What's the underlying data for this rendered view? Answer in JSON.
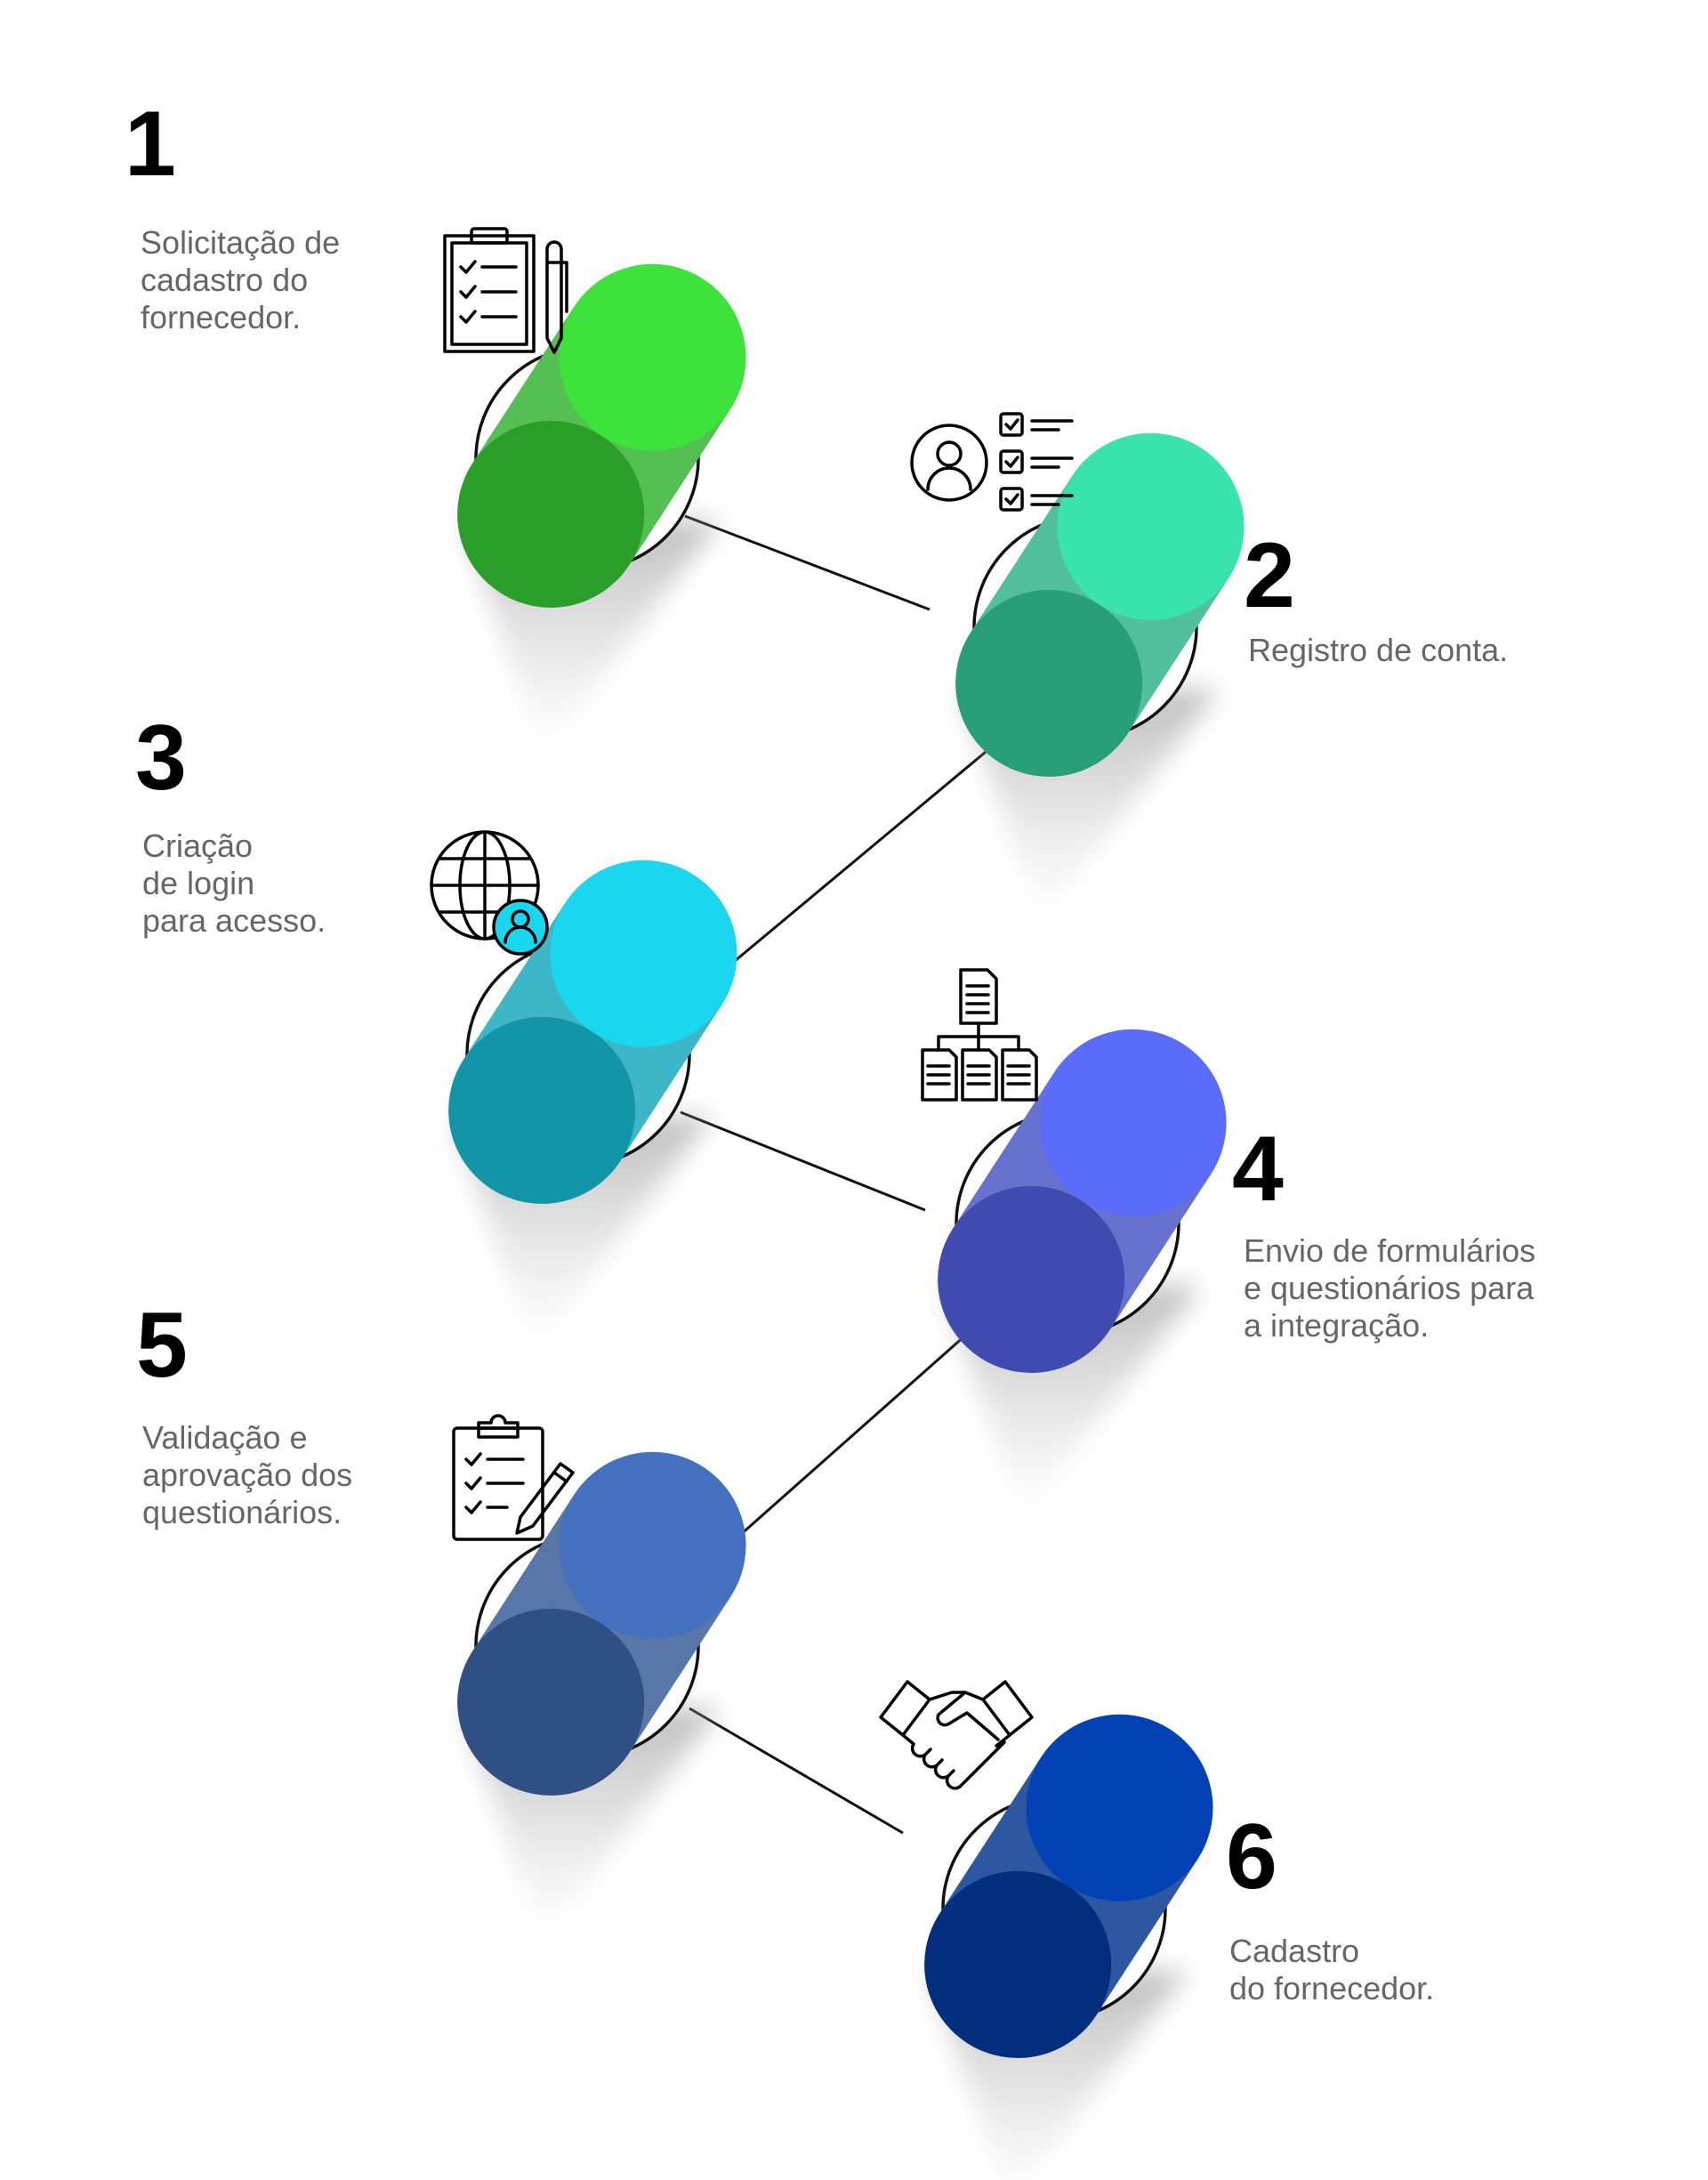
{
  "steps": [
    {
      "number": "1",
      "text": "Solicitação de\ncadastro do\nfornecedor.",
      "color": "#3DE23A",
      "icon": "clipboard-checklist-pencil-icon"
    },
    {
      "number": "2",
      "text": "Registro de conta.",
      "color": "#3AE2AE",
      "icon": "user-checklist-icon"
    },
    {
      "number": "3",
      "text": "Criação\n de login\npara acesso.",
      "color": "#1AD6EE",
      "icon": "globe-user-icon"
    },
    {
      "number": "4",
      "text": "Envio de formulários\ne questionários para\na integração.",
      "color": "#5B6CFB",
      "icon": "document-hierarchy-icon"
    },
    {
      "number": "5",
      "text": "Validação e\naprovação dos\nquestionários.",
      "color": "#4471BF",
      "icon": "clipboard-pen-icon"
    },
    {
      "number": "6",
      "text": "Cadastro\ndo fornecedor.",
      "color": "#0342B5",
      "icon": "handshake-icon"
    }
  ]
}
